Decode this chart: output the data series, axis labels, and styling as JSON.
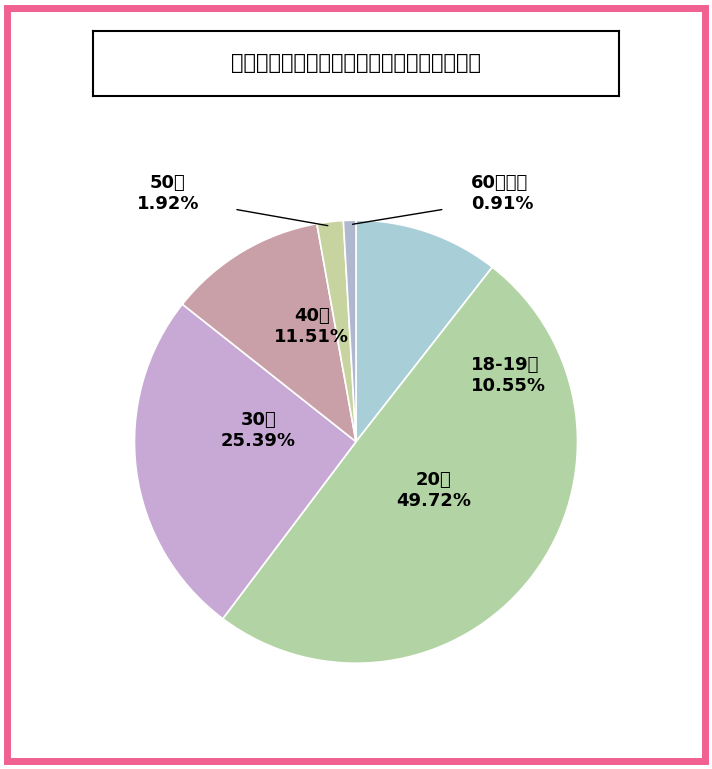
{
  "title": "長野県のワクワクメール：女性会員の年齢層",
  "labels": [
    "18-19歳",
    "20代",
    "30代",
    "40代",
    "50代",
    "60代以上"
  ],
  "values": [
    10.55,
    49.72,
    25.39,
    11.51,
    1.92,
    0.91
  ],
  "colors": [
    "#a8cfd8",
    "#b2d4a4",
    "#c8a8d5",
    "#c9a0a8",
    "#c8d4a0",
    "#b0b8d0"
  ],
  "background_color": "#ffffff",
  "border_color": "#f06090",
  "title_fontsize": 15,
  "label_fontsize": 13
}
